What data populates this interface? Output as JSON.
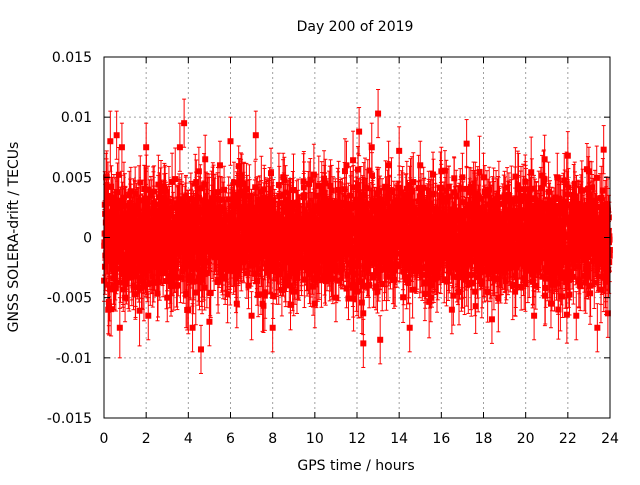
{
  "chart_data": {
    "type": "scatter",
    "title": "Day 200 of 2019",
    "xlabel": "GPS time / hours",
    "ylabel": "GNSS SOLERA-drift / TECUs",
    "xlim": [
      0,
      24
    ],
    "ylim": [
      -0.015,
      0.015
    ],
    "xticks": [
      0,
      2,
      4,
      6,
      8,
      10,
      12,
      14,
      16,
      18,
      20,
      22,
      24
    ],
    "xtick_labels": [
      "0",
      "2",
      "4",
      "6",
      "8",
      "10",
      "12",
      "14",
      "16",
      "18",
      "20",
      "22",
      "24"
    ],
    "yticks": [
      -0.015,
      -0.01,
      -0.005,
      0,
      0.005,
      0.01,
      0.015
    ],
    "ytick_labels": [
      "-0.015",
      "-0.01",
      "-0.005",
      "0",
      "0.005",
      "0.01",
      "0.015"
    ],
    "grid": true,
    "series": [
      {
        "name": "SOLERA-drift",
        "color": "#ff0000",
        "marker": "square",
        "error_bars": true,
        "x": [
          0.1,
          0.2,
          0.3,
          0.4,
          0.5,
          0.6,
          0.75,
          0.85,
          1.0,
          1.2,
          1.4,
          2.0,
          2.1,
          2.9,
          3.0,
          3.6,
          3.8,
          4.0,
          4.2,
          4.5,
          4.6,
          4.8,
          5.0,
          5.5,
          6.0,
          6.3,
          6.5,
          7.0,
          7.2,
          7.6,
          8.0,
          8.5,
          9.0,
          9.5,
          10.0,
          10.5,
          11.0,
          11.5,
          12.0,
          12.1,
          12.3,
          12.7,
          13.0,
          13.1,
          13.5,
          14.0,
          14.5,
          15.0,
          15.5,
          16.0,
          16.5,
          17.0,
          17.2,
          17.6,
          18.0,
          18.4,
          19.0,
          19.5,
          20.0,
          20.4,
          20.9,
          21.2,
          21.5,
          22.0,
          22.4,
          23.0,
          23.4,
          23.7,
          23.9
        ],
        "y": [
          0.005,
          -0.006,
          0.008,
          0.003,
          -0.004,
          0.0085,
          -0.0075,
          0.0075,
          -0.005,
          0.0035,
          -0.004,
          0.0075,
          -0.0065,
          0.004,
          -0.005,
          0.0075,
          0.0095,
          -0.006,
          -0.0075,
          0.0055,
          -0.0093,
          0.0065,
          -0.007,
          0.006,
          0.008,
          -0.0055,
          0.0045,
          -0.0065,
          0.0085,
          0.004,
          -0.0075,
          0.005,
          -0.0045,
          0.0035,
          -0.0055,
          0.0045,
          -0.005,
          0.006,
          -0.0045,
          0.0088,
          -0.0088,
          0.0075,
          0.0103,
          -0.0085,
          0.006,
          0.0072,
          -0.0075,
          0.006,
          -0.005,
          0.0055,
          -0.006,
          0.005,
          0.0078,
          -0.0045,
          0.005,
          -0.0068,
          0.0035,
          -0.0045,
          0.004,
          -0.0065,
          0.0065,
          -0.0055,
          0.005,
          0.0068,
          -0.0065,
          0.0055,
          -0.0075,
          0.0073,
          -0.0063
        ],
        "err": [
          0.002,
          0.002,
          0.0025,
          0.002,
          0.002,
          0.002,
          0.0025,
          0.002,
          0.002,
          0.002,
          0.002,
          0.002,
          0.002,
          0.002,
          0.002,
          0.002,
          0.002,
          0.002,
          0.002,
          0.002,
          0.002,
          0.002,
          0.002,
          0.002,
          0.002,
          0.002,
          0.002,
          0.002,
          0.002,
          0.002,
          0.002,
          0.002,
          0.002,
          0.002,
          0.002,
          0.002,
          0.002,
          0.002,
          0.002,
          0.002,
          0.002,
          0.002,
          0.002,
          0.002,
          0.002,
          0.002,
          0.002,
          0.002,
          0.002,
          0.002,
          0.002,
          0.002,
          0.002,
          0.002,
          0.002,
          0.002,
          0.002,
          0.002,
          0.002,
          0.002,
          0.002,
          0.002,
          0.002,
          0.002,
          0.002,
          0.002,
          0.002,
          0.002,
          0.002
        ]
      }
    ],
    "background_noise": {
      "description": "dense red error-bar cloud of ~2880 samples around 0",
      "sigma": 0.002,
      "count": 2880
    }
  }
}
